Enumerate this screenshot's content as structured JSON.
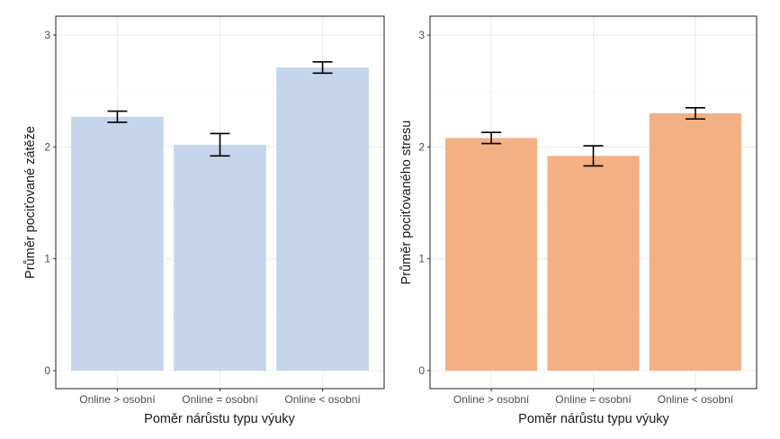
{
  "chart_data": [
    {
      "type": "bar",
      "categories": [
        "Online > osobní",
        "Online = osobní",
        "Online < osobní"
      ],
      "values": [
        2.27,
        2.02,
        2.71
      ],
      "error_low": [
        2.22,
        1.92,
        2.66
      ],
      "error_high": [
        2.32,
        2.12,
        2.76
      ],
      "xlabel": "Poměr nárůstu typu výuky",
      "ylabel": "Průměr pociťované zátěže",
      "ylim": [
        0,
        3
      ],
      "yticks": [
        "0",
        "1",
        "2",
        "3"
      ],
      "grid": true,
      "bar_color": "#c5d5ec"
    },
    {
      "type": "bar",
      "categories": [
        "Online > osobní",
        "Online = osobní",
        "Online < osobní"
      ],
      "values": [
        2.08,
        1.92,
        2.3
      ],
      "error_low": [
        2.03,
        1.83,
        2.25
      ],
      "error_high": [
        2.13,
        2.01,
        2.35
      ],
      "xlabel": "Poměr nárůstu typu výuky",
      "ylabel": "Průměr pociťovaného stresu",
      "ylim": [
        0,
        3
      ],
      "yticks": [
        "0",
        "1",
        "2",
        "3"
      ],
      "grid": true,
      "bar_color": "#f2b084"
    }
  ]
}
